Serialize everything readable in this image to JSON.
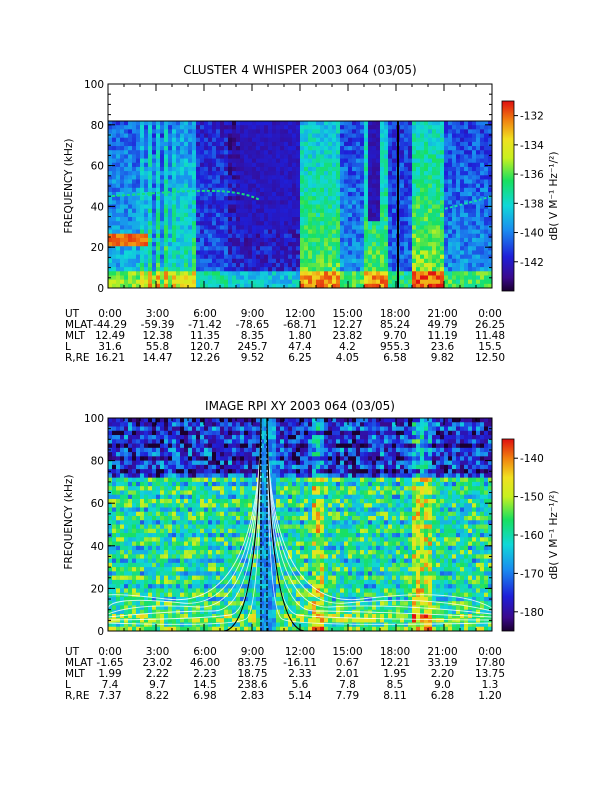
{
  "chart_data": [
    {
      "type": "heatmap",
      "title": "CLUSTER 4 WHISPER 2003 064 (03/05)",
      "ylabel": "FREQUENCY (kHz)",
      "ylim": [
        0,
        100
      ],
      "yticks": [
        "0",
        "20",
        "40",
        "60",
        "80",
        "100"
      ],
      "data_ylim": [
        0,
        80
      ],
      "xlim": [
        0,
        24
      ],
      "xtick_labels": [
        "0:00",
        "3:00",
        "6:00",
        "9:00",
        "12:00",
        "15:00",
        "18:00",
        "21:00",
        "0:00"
      ],
      "colorbar": {
        "label": "dB( V M⁻¹ Hz⁻¹/²)",
        "range": [
          -144,
          -131
        ],
        "ticks": [
          "-132",
          "-134",
          "-136",
          "-138",
          "-140",
          "-142"
        ]
      },
      "marker_line_ut": 18.0,
      "ephemeris": {
        "UT": [
          "0:00",
          "3:00",
          "6:00",
          "9:00",
          "12:00",
          "15:00",
          "18:00",
          "21:00",
          "0:00"
        ],
        "MLAT": [
          "-44.29",
          "-59.39",
          "-71.42",
          "-78.65",
          "-68.71",
          "12.27",
          "85.24",
          "49.79",
          "26.25"
        ],
        "MLT": [
          "12.49",
          "12.38",
          "11.35",
          "8.35",
          "1.80",
          "23.82",
          "9.70",
          "11.19",
          "11.48"
        ],
        "L": [
          "31.6",
          "55.8",
          "120.7",
          "245.7",
          "47.4",
          "4.2",
          "955.3",
          "23.6",
          "15.5"
        ],
        "R,RE": [
          "16.21",
          "14.47",
          "12.26",
          "9.52",
          "6.25",
          "4.05",
          "6.58",
          "9.82",
          "12.50"
        ]
      }
    },
    {
      "type": "heatmap",
      "title": "IMAGE RPI XY 2003 064 (03/05)",
      "ylabel": "FREQUENCY (kHz)",
      "ylim": [
        0,
        100
      ],
      "yticks": [
        "0",
        "20",
        "40",
        "60",
        "80",
        "100"
      ],
      "xlim": [
        0,
        24
      ],
      "xtick_labels": [
        "0:00",
        "3:00",
        "6:00",
        "9:00",
        "12:00",
        "15:00",
        "18:00",
        "21:00",
        "0:00"
      ],
      "colorbar": {
        "label": "dB( V M⁻¹ Hz⁻¹/²)",
        "range": [
          -185,
          -135
        ],
        "ticks": [
          "-140",
          "-150",
          "-160",
          "-170",
          "-180"
        ]
      },
      "ephemeris": {
        "UT": [
          "0:00",
          "3:00",
          "6:00",
          "9:00",
          "12:00",
          "15:00",
          "18:00",
          "21:00",
          "0:00"
        ],
        "MLAT": [
          "-1.65",
          "23.02",
          "46.00",
          "83.75",
          "-16.11",
          "0.67",
          "12.21",
          "33.19",
          "17.80"
        ],
        "MLT": [
          "1.99",
          "2.22",
          "2.23",
          "18.75",
          "2.33",
          "2.01",
          "1.95",
          "2.20",
          "13.75"
        ],
        "L": [
          "7.4",
          "9.7",
          "14.5",
          "238.6",
          "5.6",
          "7.8",
          "8.5",
          "9.0",
          "1.3"
        ],
        "R,RE": [
          "7.37",
          "8.22",
          "6.98",
          "2.83",
          "5.14",
          "7.79",
          "8.11",
          "6.28",
          "1.20"
        ]
      }
    }
  ]
}
